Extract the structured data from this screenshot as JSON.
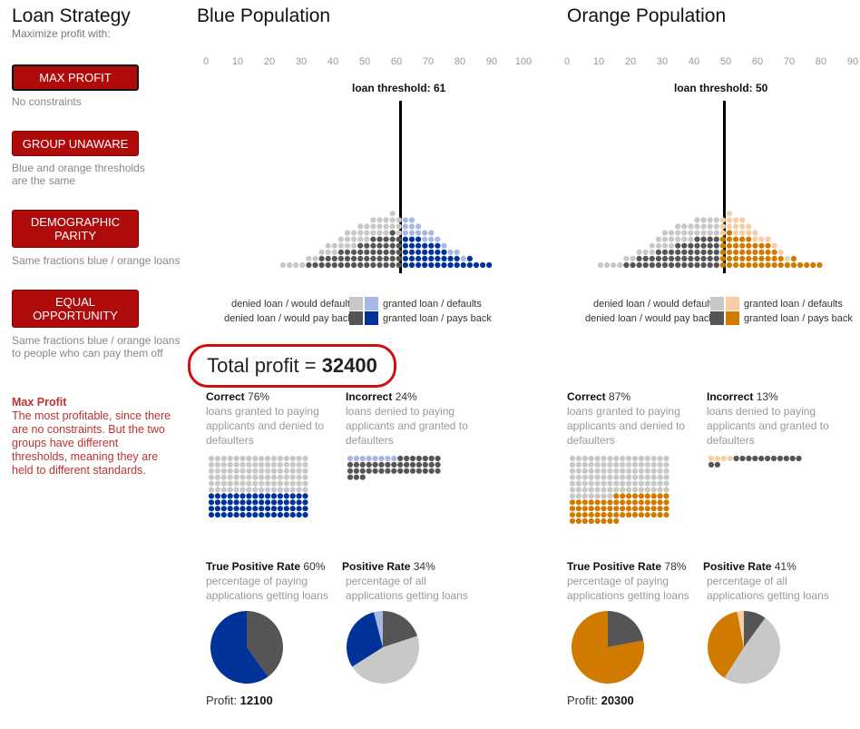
{
  "sidebar": {
    "title": "Loan Strategy",
    "subtitle": "Maximize profit with:",
    "strategies": [
      {
        "label": "MAX PROFIT",
        "note": "No constraints"
      },
      {
        "label": "GROUP UNAWARE",
        "note": "Blue and orange thresholds are the same"
      },
      {
        "label": "DEMOGRAPHIC PARITY",
        "note": "Same fractions blue / orange loans"
      },
      {
        "label": "EQUAL OPPORTUNITY",
        "note": "Same fractions blue / orange loans to people who can pay them off"
      }
    ],
    "description_title": "Max Profit",
    "description": "The most profitable, since there are no constraints. But the two groups have different thresholds, meaning they are held to different standards."
  },
  "total_profit": {
    "label": "Total profit = ",
    "value": "32400"
  },
  "colors": {
    "blue_dark": "#003399",
    "blue_light": "#a9b8e3",
    "orange_dark": "#d07b00",
    "orange_light": "#f7ceA4",
    "gray_dark": "#555555",
    "gray_light": "#c8c8c8"
  },
  "blue": {
    "title": "Blue Population",
    "axis_ticks": [
      "0",
      "10",
      "20",
      "30",
      "40",
      "50",
      "60",
      "70",
      "80",
      "90",
      "100"
    ],
    "threshold_label": "loan threshold: 61",
    "threshold": 61,
    "legend": {
      "denied_default": "denied loan / would default",
      "denied_pay": "denied loan / would pay back",
      "granted_default": "granted loan / defaults",
      "granted_pay": "granted loan / pays back"
    },
    "correct": {
      "label": "Correct",
      "value": "76%",
      "text": "loans granted to paying applicants and denied to defaulters"
    },
    "incorrect": {
      "label": "Incorrect",
      "value": "24%",
      "text": "loans denied to paying applicants and granted to defaulters"
    },
    "tpr": {
      "label": "True Positive Rate",
      "value": "60%",
      "text": "percentage of paying applications getting loans",
      "fraction": 0.6
    },
    "pr": {
      "label": "Positive Rate",
      "value": "34%",
      "text": "percentage of all applications getting loans",
      "fraction": 0.34
    },
    "profit": {
      "label": "Profit:",
      "value": "12100"
    }
  },
  "orange": {
    "title": "Orange Population",
    "axis_ticks": [
      "0",
      "10",
      "20",
      "30",
      "40",
      "50",
      "60",
      "70",
      "80",
      "90"
    ],
    "threshold_label": "loan threshold: 50",
    "threshold": 50,
    "legend": {
      "denied_default": "denied loan / would default",
      "denied_pay": "denied loan / would pay back",
      "granted_default": "granted loan / defaults",
      "granted_pay": "granted loan / pays back"
    },
    "correct": {
      "label": "Correct",
      "value": "87%",
      "text": "loans granted to paying applicants and denied to defaulters"
    },
    "incorrect": {
      "label": "Incorrect",
      "value": "13%",
      "text": "loans denied to paying applicants and granted to defaulters"
    },
    "tpr": {
      "label": "True Positive Rate",
      "value": "78%",
      "text": "percentage of paying applications getting loans",
      "fraction": 0.78
    },
    "pr": {
      "label": "Positive Rate",
      "value": "41%",
      "text": "percentage of all applications getting loans",
      "fraction": 0.41
    },
    "profit": {
      "label": "Profit:",
      "value": "20300"
    }
  }
}
